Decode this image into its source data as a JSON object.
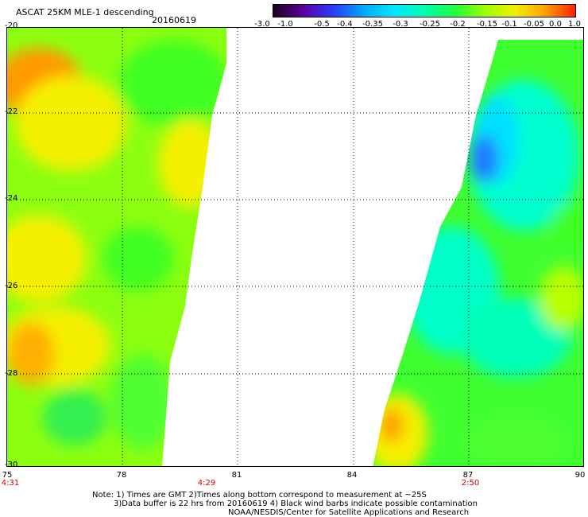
{
  "header": {
    "title": "ASCAT 25KM MLE-1 descending",
    "date": "20160619"
  },
  "colorbar": {
    "labels": [
      "-3.0",
      "-1.0",
      "-0.5",
      "-0.4",
      "-0.35",
      "-0.3",
      "-0.25",
      "-0.2",
      "-0.15",
      "-0.1",
      "-0.05",
      "0.0",
      "1.0"
    ],
    "colors": [
      "#1a0020",
      "#5a00a0",
      "#2a3cff",
      "#00a8ff",
      "#00e8ff",
      "#00ffb0",
      "#20ff40",
      "#9cff00",
      "#f0f000",
      "#ffa000",
      "#ff2000"
    ]
  },
  "map": {
    "lat_labels": [
      "-20",
      "-22",
      "-24",
      "-26",
      "-28",
      "-30"
    ],
    "lon_labels": [
      "75",
      "78",
      "81",
      "84",
      "87",
      "90"
    ],
    "time_labels": [
      "4:31",
      "4:29",
      "2:50"
    ],
    "swath_colors": {
      "orange": "#ff9a00",
      "yellow": "#f4f000",
      "yellow_green": "#b8ff00",
      "green": "#40ff20",
      "aqua": "#00ffc8",
      "cyan": "#00f0ff",
      "blue": "#1a78ff"
    }
  },
  "notes": {
    "line1": "Note: 1) Times are GMT 2)Times along bottom correspond to measurement at ~25S",
    "line2": "3)Data buffer is 22 hrs from 20160619 4) Black wind barbs indicate possible contamination",
    "line3": "NOAA/NESDIS/Center for Satellite Applications and Research"
  }
}
